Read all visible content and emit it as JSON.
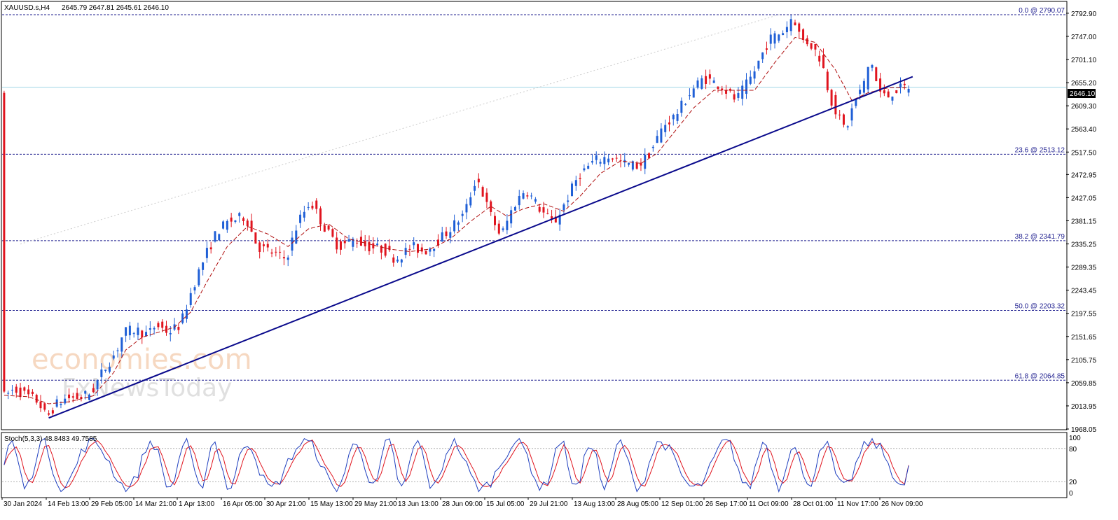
{
  "header": {
    "symbol": "XAUUSD.s,H4",
    "ohlc": "2645.79 2647.81 2645.61 2646.10"
  },
  "indicator": {
    "label": "Stoch(5,3,3) 48.8483 49.7585",
    "levels": [
      "100",
      "80",
      "20",
      "0"
    ]
  },
  "watermark": {
    "line1": "economies.com",
    "line2": "FxNewsToday"
  },
  "colors": {
    "bull": "#1f5fd6",
    "bear": "#e0141e",
    "ma": "#b01010",
    "trendline": "#0a0a8c",
    "fib": "#1f1f8f",
    "current": "#9fd6e6",
    "stoch_main": "#1f3fbf",
    "stoch_signal": "#e0141e"
  },
  "chart_data": {
    "type": "candlestick",
    "symbol": "XAUUSD.s",
    "timeframe": "H4",
    "last_price": "2646.10",
    "y_range": [
      1968.05,
      2815
    ],
    "y_ticks": [
      "2792.90",
      "2747.00",
      "2701.10",
      "2655.20",
      "2609.30",
      "2563.40",
      "2517.50",
      "2472.95",
      "2427.05",
      "2381.15",
      "2335.25",
      "2289.35",
      "2243.45",
      "2197.55",
      "2151.65",
      "2105.75",
      "2059.85",
      "2013.95",
      "1968.05"
    ],
    "x_ticks": [
      "30 Jan 2024",
      "14 Feb 13:00",
      "29 Feb 05:00",
      "14 Mar 21:00",
      "1 Apr 13:00",
      "16 Apr 05:00",
      "30 Apr 21:00",
      "15 May 13:00",
      "29 May 21:00",
      "13 Jun 13:00",
      "28 Jun 09:00",
      "15 Jul 05:00",
      "29 Jul 21:00",
      "13 Aug 13:00",
      "28 Aug 05:00",
      "12 Sep 01:00",
      "26 Sep 17:00",
      "11 Oct 09:00",
      "28 Oct 01:00",
      "11 Nov 17:00",
      "26 Nov 09:00"
    ],
    "fib_levels": [
      {
        "label": "0.0 @ 2790.07",
        "value": 2790.07
      },
      {
        "label": "23.6 @ 2513.12",
        "value": 2513.12
      },
      {
        "label": "38.2 @ 2341.79",
        "value": 2341.79
      },
      {
        "label": "50.0 @ 2203.32",
        "value": 2203.32
      },
      {
        "label": "61.8 @ 2064.85",
        "value": 2064.85
      }
    ],
    "price_path": [
      [
        0,
        2030
      ],
      [
        3,
        2048
      ],
      [
        6,
        2035
      ],
      [
        9,
        2022
      ],
      [
        11,
        1990
      ],
      [
        13,
        2015
      ],
      [
        16,
        2030
      ],
      [
        19,
        2030
      ],
      [
        22,
        2040
      ],
      [
        25,
        2085
      ],
      [
        28,
        2120
      ],
      [
        30,
        2160
      ],
      [
        33,
        2165
      ],
      [
        36,
        2155
      ],
      [
        38,
        2175
      ],
      [
        41,
        2160
      ],
      [
        44,
        2175
      ],
      [
        47,
        2250
      ],
      [
        50,
        2310
      ],
      [
        53,
        2360
      ],
      [
        56,
        2380
      ],
      [
        60,
        2390
      ],
      [
        63,
        2330
      ],
      [
        66,
        2320
      ],
      [
        70,
        2305
      ],
      [
        73,
        2380
      ],
      [
        76,
        2420
      ],
      [
        80,
        2360
      ],
      [
        83,
        2330
      ],
      [
        87,
        2345
      ],
      [
        90,
        2330
      ],
      [
        94,
        2325
      ],
      [
        97,
        2305
      ],
      [
        101,
        2330
      ],
      [
        104,
        2320
      ],
      [
        108,
        2345
      ],
      [
        111,
        2370
      ],
      [
        114,
        2395
      ],
      [
        117,
        2470
      ],
      [
        120,
        2400
      ],
      [
        123,
        2350
      ],
      [
        126,
        2410
      ],
      [
        129,
        2445
      ],
      [
        133,
        2400
      ],
      [
        136,
        2375
      ],
      [
        139,
        2420
      ],
      [
        142,
        2470
      ],
      [
        146,
        2500
      ],
      [
        150,
        2510
      ],
      [
        153,
        2495
      ],
      [
        157,
        2490
      ],
      [
        160,
        2520
      ],
      [
        163,
        2570
      ],
      [
        166,
        2590
      ],
      [
        170,
        2640
      ],
      [
        173,
        2665
      ],
      [
        177,
        2650
      ],
      [
        181,
        2620
      ],
      [
        185,
        2670
      ],
      [
        189,
        2740
      ],
      [
        193,
        2760
      ],
      [
        195,
        2790
      ],
      [
        197,
        2740
      ],
      [
        199,
        2735
      ],
      [
        202,
        2700
      ],
      [
        204,
        2630
      ],
      [
        206,
        2590
      ],
      [
        208,
        2560
      ],
      [
        210,
        2615
      ],
      [
        213,
        2660
      ],
      [
        214,
        2710
      ],
      [
        216,
        2640
      ],
      [
        218,
        2625
      ],
      [
        220,
        2640
      ],
      [
        223,
        2646
      ]
    ],
    "ma_path": [
      [
        0,
        2035
      ],
      [
        6,
        2032
      ],
      [
        11,
        2018
      ],
      [
        16,
        2022
      ],
      [
        22,
        2034
      ],
      [
        27,
        2080
      ],
      [
        30,
        2125
      ],
      [
        34,
        2150
      ],
      [
        38,
        2160
      ],
      [
        42,
        2170
      ],
      [
        46,
        2200
      ],
      [
        50,
        2260
      ],
      [
        55,
        2330
      ],
      [
        60,
        2370
      ],
      [
        65,
        2355
      ],
      [
        70,
        2330
      ],
      [
        75,
        2365
      ],
      [
        80,
        2375
      ],
      [
        85,
        2345
      ],
      [
        90,
        2335
      ],
      [
        95,
        2325
      ],
      [
        100,
        2320
      ],
      [
        105,
        2325
      ],
      [
        110,
        2345
      ],
      [
        115,
        2380
      ],
      [
        120,
        2410
      ],
      [
        124,
        2390
      ],
      [
        128,
        2405
      ],
      [
        133,
        2415
      ],
      [
        138,
        2400
      ],
      [
        142,
        2430
      ],
      [
        147,
        2475
      ],
      [
        152,
        2500
      ],
      [
        157,
        2495
      ],
      [
        161,
        2515
      ],
      [
        165,
        2555
      ],
      [
        170,
        2605
      ],
      [
        175,
        2640
      ],
      [
        180,
        2640
      ],
      [
        185,
        2640
      ],
      [
        190,
        2695
      ],
      [
        195,
        2745
      ],
      [
        200,
        2735
      ],
      [
        205,
        2680
      ],
      [
        209,
        2620
      ],
      [
        213,
        2635
      ],
      [
        218,
        2645
      ],
      [
        223,
        2645
      ]
    ],
    "trendline": {
      "from": [
        11,
        1990
      ],
      "to": [
        224,
        2667
      ]
    },
    "stochastic": {
      "k": 48.8483,
      "d": 49.7585,
      "levels": [
        100,
        80,
        20,
        0
      ]
    }
  }
}
